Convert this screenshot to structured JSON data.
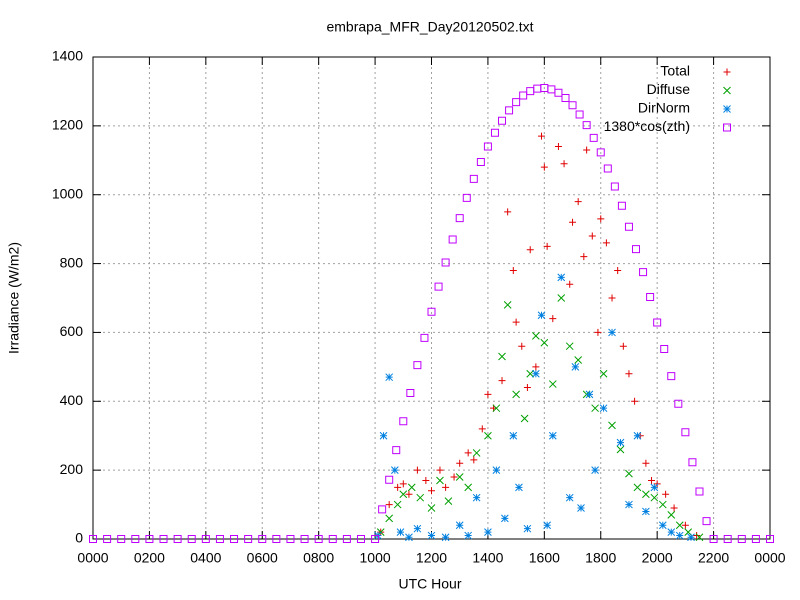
{
  "chart_data": {
    "type": "scatter",
    "title": "embrapa_MFR_Day20120502.txt",
    "xlabel": "UTC Hour",
    "ylabel": "Irradiance (W/m2)",
    "xlim": [
      0,
      24
    ],
    "ylim": [
      0,
      1400
    ],
    "xticks": [
      {
        "value": 0,
        "label": "0000"
      },
      {
        "value": 2,
        "label": "0200"
      },
      {
        "value": 4,
        "label": "0400"
      },
      {
        "value": 6,
        "label": "0600"
      },
      {
        "value": 8,
        "label": "0800"
      },
      {
        "value": 10,
        "label": "1000"
      },
      {
        "value": 12,
        "label": "1200"
      },
      {
        "value": 14,
        "label": "1400"
      },
      {
        "value": 16,
        "label": "1600"
      },
      {
        "value": 18,
        "label": "1800"
      },
      {
        "value": 20,
        "label": "2000"
      },
      {
        "value": 22,
        "label": "2200"
      },
      {
        "value": 24,
        "label": "0000"
      }
    ],
    "yticks": [
      0,
      200,
      400,
      600,
      800,
      1000,
      1200,
      1400
    ],
    "grid": true,
    "legend": "top-right",
    "series": [
      {
        "name": "Total",
        "color": "#e00000",
        "marker": "plus",
        "x": [
          10.2,
          10.5,
          10.8,
          11.0,
          11.2,
          11.5,
          11.8,
          12.0,
          12.3,
          12.5,
          12.8,
          13.0,
          13.3,
          13.5,
          13.8,
          14.0,
          14.2,
          14.5,
          14.7,
          14.9,
          15.0,
          15.2,
          15.4,
          15.5,
          15.7,
          15.9,
          16.0,
          16.1,
          16.3,
          16.5,
          16.7,
          16.9,
          17.0,
          17.2,
          17.4,
          17.5,
          17.7,
          17.9,
          18.0,
          18.2,
          18.4,
          18.6,
          18.8,
          19.0,
          19.2,
          19.4,
          19.6,
          19.8,
          20.0,
          20.3,
          20.6,
          21.0,
          21.4
        ],
        "values": [
          20,
          100,
          150,
          160,
          130,
          200,
          170,
          140,
          200,
          150,
          180,
          220,
          250,
          230,
          320,
          420,
          380,
          460,
          950,
          780,
          630,
          560,
          440,
          840,
          500,
          1170,
          1080,
          850,
          640,
          1140,
          1090,
          740,
          920,
          980,
          820,
          1130,
          880,
          600,
          930,
          860,
          700,
          780,
          560,
          480,
          400,
          300,
          220,
          170,
          160,
          130,
          90,
          40,
          10
        ]
      },
      {
        "name": "Diffuse",
        "color": "#00a000",
        "marker": "cross",
        "x": [
          10.2,
          10.5,
          10.8,
          11.0,
          11.3,
          11.6,
          12.0,
          12.3,
          12.6,
          13.0,
          13.3,
          13.6,
          14.0,
          14.3,
          14.5,
          14.7,
          15.0,
          15.3,
          15.5,
          15.7,
          16.0,
          16.3,
          16.6,
          16.9,
          17.2,
          17.5,
          17.8,
          18.1,
          18.4,
          18.7,
          19.0,
          19.3,
          19.6,
          19.9,
          20.2,
          20.5,
          20.8,
          21.1,
          21.5
        ],
        "values": [
          20,
          60,
          100,
          130,
          150,
          120,
          90,
          170,
          110,
          180,
          150,
          250,
          300,
          380,
          530,
          680,
          420,
          350,
          480,
          590,
          570,
          450,
          700,
          560,
          520,
          420,
          380,
          480,
          330,
          260,
          190,
          150,
          130,
          120,
          100,
          70,
          40,
          20,
          5
        ]
      },
      {
        "name": "DirNorm",
        "color": "#0080e0",
        "marker": "star",
        "x": [
          10.1,
          10.3,
          10.5,
          10.7,
          10.9,
          11.2,
          11.5,
          12.0,
          12.5,
          13.0,
          13.3,
          13.6,
          14.0,
          14.3,
          14.6,
          14.9,
          15.1,
          15.4,
          15.7,
          15.9,
          16.1,
          16.3,
          16.6,
          16.9,
          17.1,
          17.3,
          17.6,
          17.8,
          18.1,
          18.4,
          18.7,
          19.0,
          19.3,
          19.6,
          19.9,
          20.2,
          20.5,
          20.8,
          21.2
        ],
        "values": [
          10,
          300,
          470,
          200,
          20,
          5,
          30,
          10,
          5,
          40,
          10,
          120,
          20,
          200,
          60,
          300,
          150,
          30,
          480,
          650,
          40,
          300,
          760,
          120,
          500,
          90,
          420,
          200,
          380,
          600,
          280,
          100,
          300,
          80,
          150,
          40,
          20,
          10,
          5
        ]
      },
      {
        "name": "1380*cos(zth)",
        "color": "#c000ff",
        "marker": "square",
        "x": [
          0,
          0.5,
          1,
          1.5,
          2,
          2.5,
          3,
          3.5,
          4,
          4.5,
          5,
          5.5,
          6,
          6.5,
          7,
          7.5,
          8,
          8.5,
          9,
          9.5,
          10,
          10.25,
          10.5,
          10.75,
          11,
          11.25,
          11.5,
          11.75,
          12,
          12.25,
          12.5,
          12.75,
          13,
          13.25,
          13.5,
          13.75,
          14,
          14.25,
          14.5,
          14.75,
          15,
          15.25,
          15.5,
          15.75,
          16,
          16.25,
          16.5,
          16.75,
          17,
          17.25,
          17.5,
          17.75,
          18,
          18.25,
          18.5,
          18.75,
          19,
          19.25,
          19.5,
          19.75,
          20,
          20.25,
          20.5,
          20.75,
          21,
          21.25,
          21.5,
          21.75,
          22,
          22.5,
          23,
          23.5,
          24
        ],
        "values": [
          0,
          0,
          0,
          0,
          0,
          0,
          0,
          0,
          0,
          0,
          0,
          0,
          0,
          0,
          0,
          0,
          0,
          0,
          0,
          0,
          0,
          86,
          172,
          258,
          342,
          424,
          505,
          584,
          660,
          733,
          803,
          870,
          932,
          991,
          1046,
          1095,
          1140,
          1180,
          1215,
          1245,
          1269,
          1288,
          1301,
          1308,
          1310,
          1306,
          1296,
          1281,
          1260,
          1233,
          1202,
          1165,
          1123,
          1076,
          1024,
          968,
          907,
          842,
          775,
          703,
          629,
          552,
          473,
          393,
          310,
          223,
          138,
          52,
          0,
          0,
          0,
          0,
          0
        ]
      }
    ]
  }
}
